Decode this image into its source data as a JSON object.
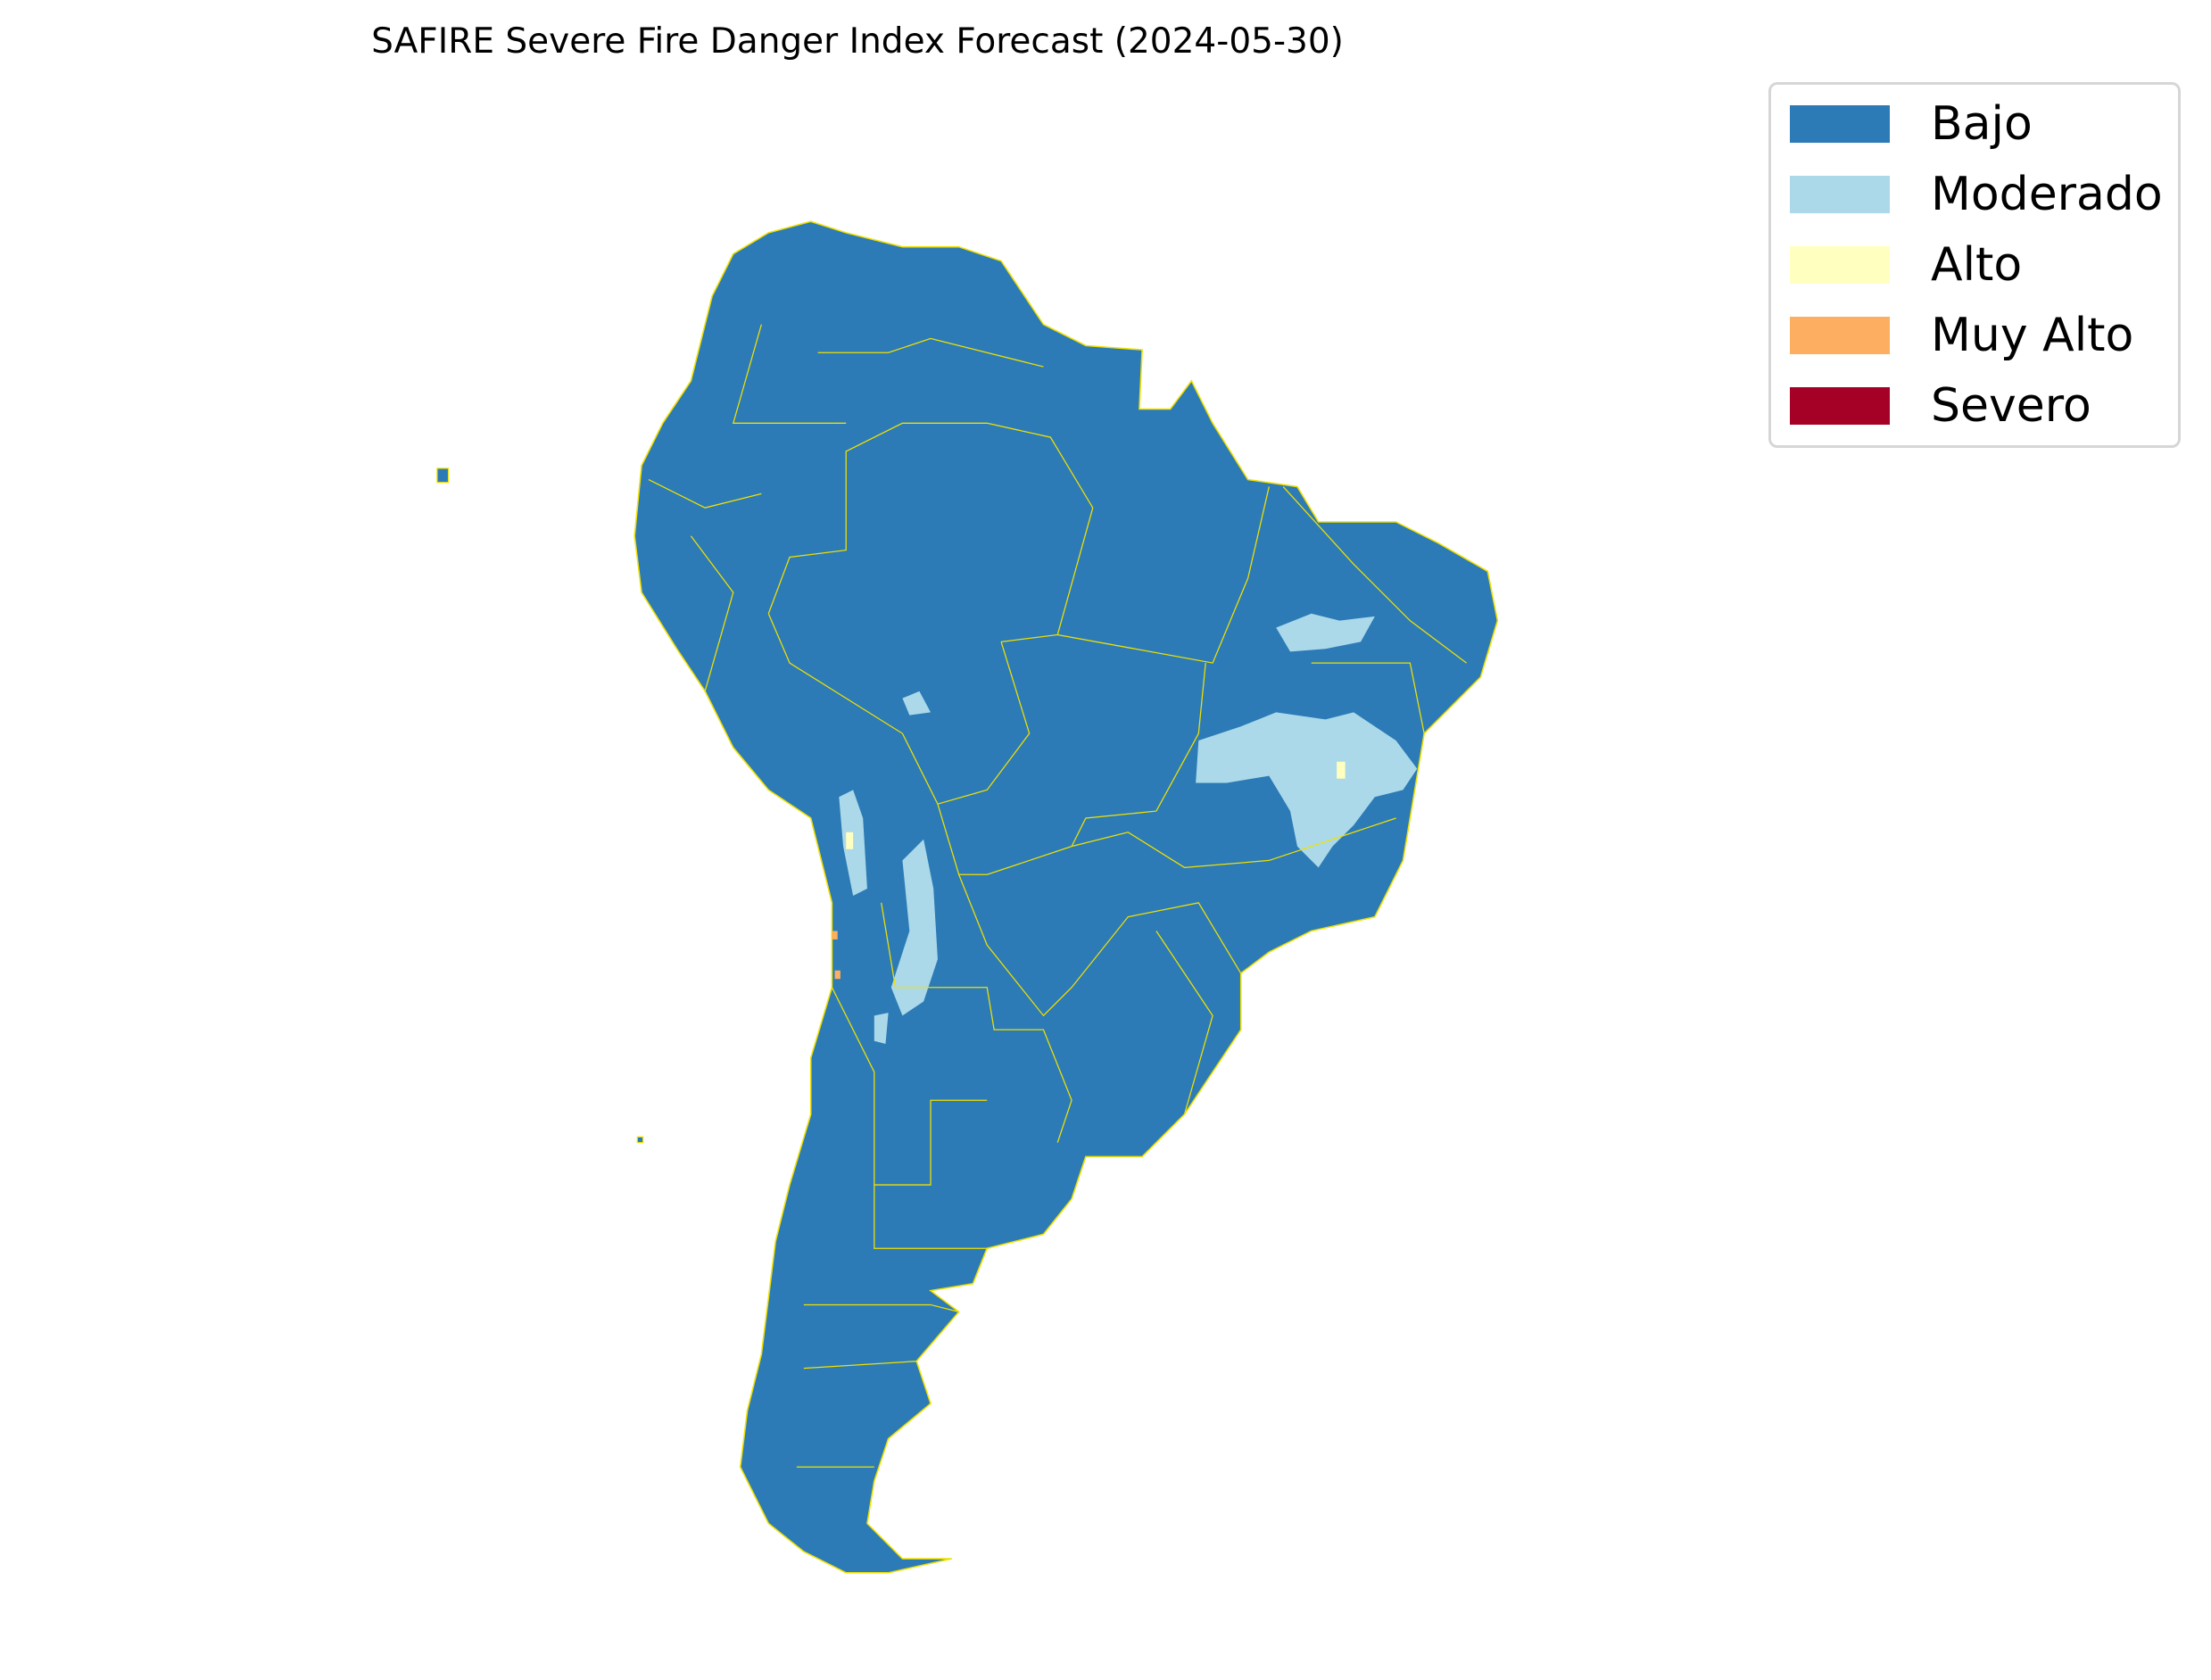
{
  "chart_data": {
    "type": "heatmap",
    "title": "SAFIRE Severe Fire Danger Index Forecast (2024-05-30)",
    "region": "South America",
    "border_color": "#f0e000",
    "legend_placement": "top-right",
    "legend": [
      {
        "label": "Bajo",
        "color": "#2c7bb6"
      },
      {
        "label": "Moderado",
        "color": "#abd9e9"
      },
      {
        "label": "Alto",
        "color": "#ffffbf"
      },
      {
        "label": "Muy Alto",
        "color": "#fdae61"
      },
      {
        "label": "Severo",
        "color": "#a50026"
      }
    ],
    "dominant_class": "Bajo",
    "areas_with_moderado": [
      "Northeast Brazil interior",
      "Andes of northern Chile / Argentina",
      "Central Bolivia"
    ],
    "areas_with_alto_muy_alto": [
      "Isolated cells in northern Chile"
    ]
  }
}
